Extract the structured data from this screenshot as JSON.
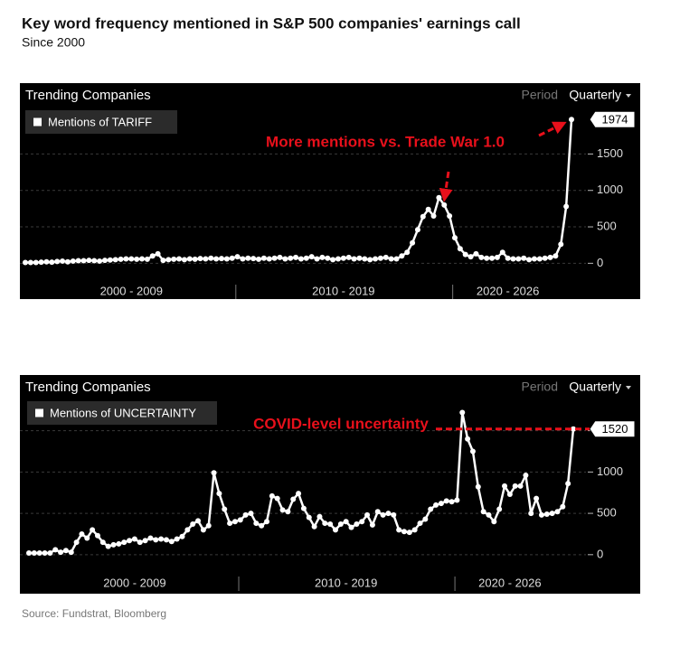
{
  "title": "Key word frequency mentioned in S&P 500 companies' earnings call",
  "subtitle": "Since 2000",
  "source": "Source: Fundstrat, Bloomberg",
  "chart_data": [
    {
      "type": "line",
      "header": "Trending Companies",
      "period_label": "Period",
      "period": "Quarterly",
      "categories": [
        null,
        null,
        null,
        null,
        null,
        null,
        null,
        null,
        null,
        null,
        null,
        null,
        null,
        null,
        null,
        null,
        null,
        null,
        null,
        null,
        "2000 - 2009",
        null,
        null,
        null,
        null,
        null,
        null,
        null,
        null,
        null,
        null,
        null,
        null,
        null,
        null,
        null,
        null,
        null,
        null,
        null,
        null,
        null,
        null,
        null,
        null,
        null,
        null,
        null,
        null,
        null,
        null,
        null,
        null,
        null,
        null,
        null,
        null,
        null,
        null,
        null,
        "2010 - 2019",
        null,
        null,
        null,
        null,
        null,
        null,
        null,
        null,
        null,
        null,
        null,
        null,
        null,
        null,
        null,
        null,
        null,
        null,
        null,
        null,
        null,
        null,
        null,
        null,
        null,
        null,
        null,
        null,
        null,
        null,
        "2020 - 2026",
        null,
        null,
        null,
        null,
        null,
        null,
        null,
        null,
        null,
        null,
        null,
        null
      ],
      "series": [
        {
          "name": "Mentions of TARIFF",
          "color": "#ffffff",
          "values": [
            10,
            10,
            10,
            15,
            20,
            15,
            25,
            30,
            20,
            30,
            35,
            35,
            40,
            35,
            30,
            40,
            45,
            50,
            55,
            60,
            60,
            55,
            60,
            55,
            100,
            130,
            40,
            50,
            55,
            60,
            50,
            60,
            55,
            65,
            60,
            70,
            60,
            65,
            60,
            70,
            90,
            60,
            70,
            65,
            55,
            70,
            60,
            70,
            80,
            60,
            70,
            80,
            60,
            70,
            90,
            60,
            80,
            70,
            50,
            60,
            70,
            80,
            60,
            70,
            60,
            50,
            60,
            70,
            80,
            60,
            60,
            100,
            150,
            280,
            460,
            640,
            740,
            650,
            900,
            800,
            650,
            350,
            200,
            120,
            90,
            130,
            80,
            70,
            70,
            80,
            150,
            70,
            60,
            60,
            70,
            50,
            60,
            60,
            70,
            80,
            100,
            260,
            780,
            1974
          ]
        }
      ],
      "annotation": "More mentions vs. Trade War 1.0",
      "annotation_color": "#e8101b",
      "ylim": [
        -380,
        2150
      ],
      "yticks": [
        0,
        500,
        1000,
        1500
      ],
      "grid": true
    },
    {
      "type": "line",
      "header": "Trending Companies",
      "period_label": "Period",
      "period": "Quarterly",
      "categories": [
        null,
        null,
        null,
        null,
        null,
        null,
        null,
        null,
        null,
        null,
        null,
        null,
        null,
        null,
        null,
        null,
        null,
        null,
        null,
        null,
        "2000 - 2009",
        null,
        null,
        null,
        null,
        null,
        null,
        null,
        null,
        null,
        null,
        null,
        null,
        null,
        null,
        null,
        null,
        null,
        null,
        null,
        null,
        null,
        null,
        null,
        null,
        null,
        null,
        null,
        null,
        null,
        null,
        null,
        null,
        null,
        null,
        null,
        null,
        null,
        null,
        null,
        "2010 - 2019",
        null,
        null,
        null,
        null,
        null,
        null,
        null,
        null,
        null,
        null,
        null,
        null,
        null,
        null,
        null,
        null,
        null,
        null,
        null,
        null,
        null,
        null,
        null,
        null,
        null,
        null,
        null,
        null,
        null,
        null,
        "2020 - 2026",
        null,
        null,
        null,
        null,
        null,
        null,
        null,
        null,
        null,
        null,
        null,
        null
      ],
      "series": [
        {
          "name": "Mentions of UNCERTAINTY",
          "color": "#ffffff",
          "values": [
            20,
            20,
            20,
            20,
            20,
            60,
            30,
            50,
            30,
            150,
            250,
            200,
            300,
            230,
            150,
            100,
            120,
            130,
            150,
            170,
            190,
            150,
            170,
            200,
            180,
            190,
            180,
            160,
            190,
            220,
            300,
            370,
            410,
            300,
            350,
            990,
            740,
            550,
            380,
            400,
            420,
            480,
            500,
            380,
            350,
            400,
            710,
            680,
            540,
            520,
            670,
            740,
            560,
            450,
            340,
            460,
            380,
            370,
            300,
            370,
            400,
            330,
            370,
            400,
            480,
            360,
            520,
            480,
            500,
            480,
            300,
            280,
            270,
            300,
            380,
            430,
            550,
            600,
            620,
            650,
            640,
            660,
            1720,
            1400,
            1250,
            820,
            520,
            480,
            400,
            550,
            830,
            730,
            830,
            830,
            960,
            500,
            680,
            480,
            490,
            500,
            520,
            580,
            860,
            1520
          ]
        }
      ],
      "annotation": "COVID-level uncertainty",
      "annotation_color": "#e8101b",
      "ylim": [
        -450,
        1900
      ],
      "yticks": [
        0,
        500,
        1000,
        1500
      ],
      "grid": true
    }
  ]
}
